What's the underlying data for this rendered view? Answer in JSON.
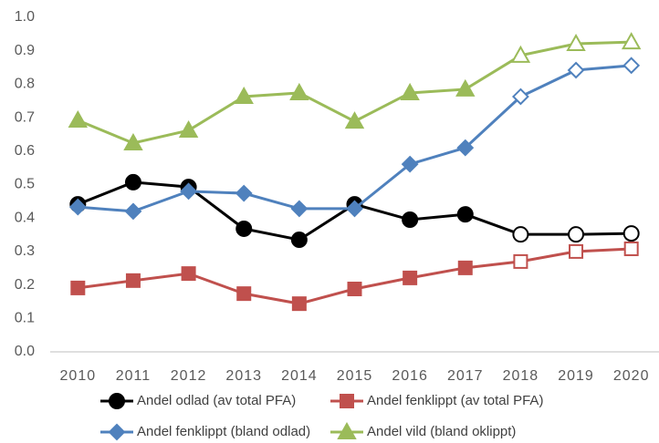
{
  "chart_data": {
    "type": "line",
    "categories": [
      "2010",
      "2011",
      "2012",
      "2013",
      "2014",
      "2015",
      "2016",
      "2017",
      "2018",
      "2019",
      "2020"
    ],
    "series": [
      {
        "name": "Andel odlad (av total PFA)",
        "color": "#000000",
        "marker": "circle",
        "values": [
          0.441,
          0.507,
          0.493,
          0.368,
          0.335,
          0.441,
          0.395,
          0.411,
          0.351,
          0.351,
          0.354
        ]
      },
      {
        "name": "Andel fenklippt (av total PFA)",
        "color": "#c0504d",
        "marker": "square",
        "values": [
          0.191,
          0.213,
          0.234,
          0.174,
          0.144,
          0.188,
          0.221,
          0.251,
          0.27,
          0.3,
          0.308
        ]
      },
      {
        "name": "Andel fenklippt (bland odlad)",
        "color": "#4f81bd",
        "marker": "diamond",
        "values": [
          0.433,
          0.42,
          0.48,
          0.474,
          0.428,
          0.428,
          0.561,
          0.61,
          0.763,
          0.842,
          0.856
        ]
      },
      {
        "name": "Andel vild (bland oklippt)",
        "color": "#9bbb59",
        "marker": "triangle",
        "values": [
          0.692,
          0.624,
          0.662,
          0.763,
          0.774,
          0.689,
          0.774,
          0.785,
          0.886,
          0.921,
          0.926
        ]
      }
    ],
    "hollow_from_index": 8,
    "ylim": [
      0,
      1
    ],
    "yticks": [
      {
        "value": 0,
        "label": "0.0"
      },
      {
        "value": 0.1,
        "label": "0.1"
      },
      {
        "value": 0.2,
        "label": "0.2"
      },
      {
        "value": 0.3,
        "label": "0.3"
      },
      {
        "value": 0.4,
        "label": "0.4"
      },
      {
        "value": 0.5,
        "label": "0.5"
      },
      {
        "value": 0.6,
        "label": "0.6"
      },
      {
        "value": 0.7,
        "label": "0.7"
      },
      {
        "value": 0.8,
        "label": "0.8"
      },
      {
        "value": 0.9,
        "label": "0.9"
      },
      {
        "value": 1,
        "label": "1.0"
      }
    ],
    "grid": false,
    "legend": "bottom"
  }
}
